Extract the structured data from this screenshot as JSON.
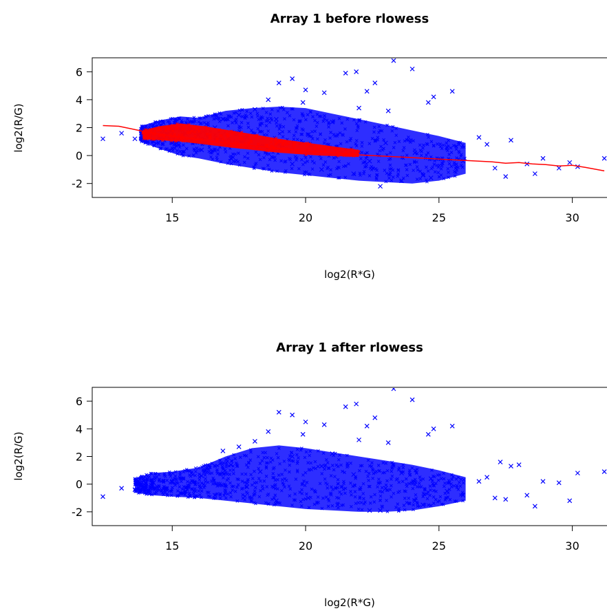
{
  "chart_data": [
    {
      "type": "scatter",
      "title": "Array 1 before rlowess",
      "xlabel": "log2(R*G)",
      "ylabel": "log2(R/G)",
      "xlim": [
        12,
        31.3
      ],
      "ylim": [
        -3,
        7
      ],
      "xticks": [
        15,
        20,
        25,
        30
      ],
      "yticks": [
        6,
        4,
        2,
        0,
        -2
      ],
      "grid": false,
      "legend": "none",
      "series": [
        {
          "kind": "points",
          "marker": "x",
          "color": "#0000ff",
          "x": [
            12.4,
            13.1,
            13.6,
            14.0,
            14.3,
            15.0,
            15.5,
            16.1,
            16.6,
            17.2,
            17.8,
            18.3,
            18.9,
            19.5,
            20.1,
            20.6,
            21.2,
            21.8,
            22.4,
            23.0,
            23.6,
            24.1,
            24.7,
            25.3,
            25.9,
            26.5,
            27.1,
            27.7,
            28.3,
            28.9,
            29.5,
            30.2,
            31.2,
            19.0,
            19.5,
            20.0,
            21.5,
            21.9,
            22.3,
            22.6,
            23.3,
            24.0,
            24.6,
            24.8,
            25.5,
            23.1,
            22.0,
            18.6,
            19.9,
            20.7,
            15.8,
            16.9,
            17.5,
            18.1,
            21.0,
            22.8,
            24.4,
            26.8,
            27.5,
            28.6,
            29.9
          ],
          "y": [
            1.2,
            1.6,
            1.2,
            1.4,
            1.0,
            0.9,
            1.6,
            0.4,
            2.0,
            -0.2,
            1.3,
            0.7,
            2.6,
            -0.6,
            1.5,
            -1.0,
            0.4,
            -1.3,
            -0.4,
            0.9,
            -1.8,
            0.2,
            -1.6,
            0.6,
            -0.4,
            1.3,
            -0.9,
            1.1,
            -0.6,
            -0.2,
            -0.9,
            -0.8,
            -0.2,
            5.2,
            5.5,
            4.7,
            5.9,
            6.0,
            4.6,
            5.2,
            6.8,
            6.2,
            3.8,
            4.2,
            4.6,
            3.2,
            3.4,
            4.0,
            3.8,
            4.5,
            1.8,
            2.6,
            2.9,
            3.3,
            2.4,
            -2.2,
            -1.4,
            0.8,
            -1.5,
            -1.3,
            -0.5
          ]
        },
        {
          "kind": "cloud",
          "color": "#0000ff",
          "x": [
            13.8,
            14.5,
            15.3,
            16.0,
            17.0,
            18.0,
            19.0,
            20.0,
            21.0,
            22.0,
            23.0,
            24.0,
            25.0,
            26.0
          ],
          "upper": [
            2.1,
            2.5,
            2.8,
            2.7,
            3.2,
            3.4,
            3.5,
            3.4,
            3.0,
            2.6,
            2.2,
            1.8,
            1.4,
            0.9
          ],
          "lower": [
            1.0,
            0.5,
            0.0,
            -0.2,
            -0.6,
            -0.9,
            -1.2,
            -1.4,
            -1.6,
            -1.8,
            -1.9,
            -2.0,
            -1.8,
            -1.3
          ]
        },
        {
          "kind": "cloud",
          "color": "#ff0000",
          "x": [
            13.9,
            14.5,
            15.3,
            16.2,
            17.5,
            19.0,
            20.5,
            22.0
          ],
          "upper": [
            1.8,
            2.1,
            2.3,
            2.1,
            1.7,
            1.2,
            0.8,
            0.4
          ],
          "lower": [
            1.2,
            1.1,
            1.0,
            0.8,
            0.5,
            0.2,
            0.0,
            -0.1
          ]
        },
        {
          "kind": "line",
          "color": "#ff0000",
          "x": [
            12.4,
            13.0,
            13.5,
            14.0,
            15.0,
            16.0,
            17.0,
            18.0,
            19.0,
            20.0,
            21.0,
            22.0,
            23.0,
            24.0,
            25.0,
            26.0,
            26.5,
            27.0,
            27.5,
            28.0,
            28.5,
            29.0,
            29.5,
            30.0,
            30.5,
            31.2
          ],
          "y": [
            2.15,
            2.1,
            1.9,
            1.7,
            1.4,
            1.15,
            0.9,
            0.7,
            0.5,
            0.35,
            0.2,
            0.05,
            -0.05,
            -0.15,
            -0.25,
            -0.35,
            -0.4,
            -0.45,
            -0.55,
            -0.5,
            -0.6,
            -0.65,
            -0.75,
            -0.7,
            -0.85,
            -1.1
          ]
        }
      ]
    },
    {
      "type": "scatter",
      "title": "Array 1 after rlowess",
      "xlabel": "log2(R*G)",
      "ylabel": "log2(R/G)",
      "xlim": [
        12,
        31.3
      ],
      "ylim": [
        -3,
        7
      ],
      "xticks": [
        15,
        20,
        25,
        30
      ],
      "yticks": [
        6,
        4,
        2,
        0,
        -2
      ],
      "grid": false,
      "legend": "none",
      "series": [
        {
          "kind": "points",
          "marker": "x",
          "color": "#0000ff",
          "x": [
            12.4,
            13.1,
            13.6,
            14.0,
            14.3,
            15.0,
            15.5,
            16.1,
            16.6,
            17.2,
            17.8,
            18.3,
            18.9,
            19.5,
            20.1,
            20.6,
            21.2,
            21.8,
            22.4,
            23.0,
            23.6,
            24.1,
            24.7,
            25.3,
            25.9,
            26.5,
            27.1,
            27.7,
            28.3,
            28.9,
            29.5,
            30.2,
            31.2,
            19.0,
            19.5,
            20.0,
            21.5,
            21.9,
            22.3,
            22.6,
            23.3,
            24.0,
            24.6,
            24.8,
            25.5,
            23.1,
            22.0,
            18.6,
            19.9,
            20.7,
            16.9,
            17.5,
            18.1,
            21.0,
            22.8,
            24.4,
            26.8,
            27.5,
            28.6,
            29.9,
            27.3,
            28.0
          ],
          "y": [
            -0.9,
            -0.3,
            -0.4,
            -0.1,
            0.1,
            0.2,
            -0.5,
            0.6,
            -0.8,
            1.4,
            -0.2,
            0.9,
            -1.2,
            2.0,
            -1.0,
            1.3,
            -1.5,
            0.7,
            -1.9,
            -0.3,
            0.8,
            -1.2,
            0.4,
            -0.5,
            -0.8,
            0.2,
            -1.0,
            1.3,
            -0.8,
            0.2,
            0.1,
            0.8,
            0.9,
            5.2,
            5.0,
            4.5,
            5.6,
            5.8,
            4.2,
            4.8,
            6.9,
            6.1,
            3.6,
            4.0,
            4.2,
            3.0,
            3.2,
            3.8,
            3.6,
            4.3,
            2.4,
            2.7,
            3.1,
            2.2,
            -1.9,
            -1.5,
            0.5,
            -1.1,
            -1.6,
            -1.2,
            1.6,
            1.4
          ]
        },
        {
          "kind": "cloud",
          "color": "#0000ff",
          "x": [
            13.6,
            14.2,
            15.0,
            16.0,
            17.0,
            18.0,
            19.0,
            20.0,
            21.0,
            22.0,
            23.0,
            24.0,
            25.0,
            26.0
          ],
          "upper": [
            0.4,
            0.8,
            0.9,
            1.2,
            2.0,
            2.6,
            2.8,
            2.6,
            2.3,
            2.0,
            1.7,
            1.4,
            1.0,
            0.5
          ],
          "lower": [
            -0.6,
            -0.8,
            -0.9,
            -1.0,
            -1.2,
            -1.4,
            -1.6,
            -1.8,
            -1.9,
            -2.0,
            -2.0,
            -1.9,
            -1.6,
            -1.2
          ]
        }
      ]
    }
  ]
}
